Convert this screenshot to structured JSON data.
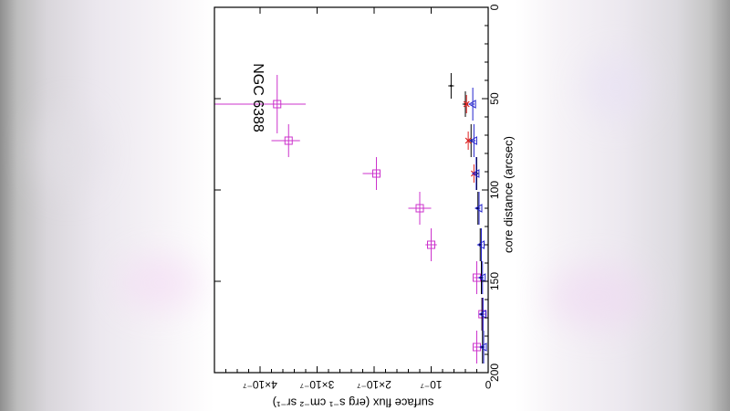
{
  "chart_data": {
    "type": "scatter",
    "title": "NGC 6388",
    "xlabel": "core distance (arcsec)",
    "ylabel": "surface flux (erg s⁻¹ cm⁻² sr⁻¹)",
    "xlim": [
      0,
      200
    ],
    "ylim": [
      0,
      4.8e-07
    ],
    "x_ticks": [
      {
        "value": 0,
        "label": "0"
      },
      {
        "value": 50,
        "label": "50"
      },
      {
        "value": 100,
        "label": "100"
      },
      {
        "value": 150,
        "label": "150"
      },
      {
        "value": 200,
        "label": "200"
      }
    ],
    "y_ticks": [
      {
        "value": 0,
        "label": "0"
      },
      {
        "value": 1e-07,
        "label": "10⁻⁷"
      },
      {
        "value": 2e-07,
        "label": "2×10⁻⁷"
      },
      {
        "value": 3e-07,
        "label": "3×10⁻⁷"
      },
      {
        "value": 4e-07,
        "label": "4×10⁻⁷"
      }
    ],
    "orientation": "rotated 90 degrees",
    "series": [
      {
        "color": "#cc33cc",
        "marker": "square",
        "points": [
          {
            "x": 53,
            "y": 3.7e-07,
            "xerr": 16,
            "ylo": 3.2e-07,
            "yhi": 4.8e-07
          },
          {
            "x": 73,
            "y": 3.5e-07,
            "xerr": 9,
            "ylo": 3.3e-07,
            "yhi": 3.8e-07
          },
          {
            "x": 91,
            "y": 1.96e-07,
            "xerr": 9,
            "ylo": 1.9e-07,
            "yhi": 2.2e-07
          },
          {
            "x": 110,
            "y": 1.2e-07,
            "xerr": 9,
            "ylo": 1e-07,
            "yhi": 1.4e-07
          },
          {
            "x": 130,
            "y": 1e-07,
            "xerr": 9,
            "ylo": 9e-08,
            "yhi": 1.1e-07
          },
          {
            "x": 148,
            "y": 2e-08,
            "xerr": 9,
            "ylo": 1.5e-08,
            "yhi": 2.5e-08
          },
          {
            "x": 168,
            "y": 1e-08,
            "xerr": 9,
            "ylo": 5e-09,
            "yhi": 1.5e-08
          },
          {
            "x": 186,
            "y": 2e-08,
            "xerr": 9,
            "ylo": 1.5e-08,
            "yhi": 2.5e-08
          }
        ]
      },
      {
        "color": "#000000",
        "marker": "plus",
        "points": [
          {
            "x": 43,
            "y": 6.5e-08,
            "xerr": 7,
            "ylo": 6e-08,
            "yhi": 7e-08
          },
          {
            "x": 53,
            "y": 4e-08,
            "xerr": 7,
            "ylo": 3.5e-08,
            "yhi": 4.5e-08
          },
          {
            "x": 73,
            "y": 3e-08,
            "xerr": 9,
            "ylo": 2.7e-08,
            "yhi": 3.3e-08
          },
          {
            "x": 91,
            "y": 2e-08,
            "xerr": 9,
            "ylo": 1.7e-08,
            "yhi": 2.3e-08
          },
          {
            "x": 110,
            "y": 1.8e-08,
            "xerr": 9,
            "ylo": 1.5e-08,
            "yhi": 2.1e-08
          },
          {
            "x": 130,
            "y": 1.4e-08,
            "xerr": 9,
            "ylo": 1.2e-08,
            "yhi": 1.6e-08
          },
          {
            "x": 148,
            "y": 1.2e-08,
            "xerr": 9,
            "ylo": 1e-08,
            "yhi": 1.4e-08
          },
          {
            "x": 168,
            "y": 1.1e-08,
            "xerr": 9,
            "ylo": 9e-09,
            "yhi": 1.3e-08
          },
          {
            "x": 186,
            "y": 1e-08,
            "xerr": 9,
            "ylo": 8e-09,
            "yhi": 1.2e-08
          }
        ]
      },
      {
        "color": "#dd2222",
        "marker": "star",
        "points": [
          {
            "x": 53,
            "y": 3.8e-08,
            "xerr": 5,
            "ylo": 3.6e-08,
            "yhi": 4e-08
          },
          {
            "x": 73,
            "y": 3.5e-08,
            "xerr": 5,
            "ylo": 3.3e-08,
            "yhi": 3.7e-08
          },
          {
            "x": 91,
            "y": 2.5e-08,
            "xerr": 5,
            "ylo": 2.3e-08,
            "yhi": 2.7e-08
          }
        ]
      },
      {
        "color": "#2222cc",
        "marker": "triangle",
        "points": [
          {
            "x": 53,
            "y": 2.7e-08,
            "xerr": 9,
            "ylo": 2.4e-08,
            "yhi": 3e-08
          },
          {
            "x": 73,
            "y": 2.5e-08,
            "xerr": 9,
            "ylo": 2.2e-08,
            "yhi": 2.8e-08
          },
          {
            "x": 91,
            "y": 2.1e-08,
            "xerr": 9,
            "ylo": 1.8e-08,
            "yhi": 2.4e-08
          },
          {
            "x": 110,
            "y": 1.6e-08,
            "xerr": 9,
            "ylo": 1.4e-08,
            "yhi": 1.8e-08
          },
          {
            "x": 130,
            "y": 1.2e-08,
            "xerr": 9,
            "ylo": 1e-08,
            "yhi": 1.4e-08
          },
          {
            "x": 148,
            "y": 1e-08,
            "xerr": 9,
            "ylo": 8e-09,
            "yhi": 1.2e-08
          },
          {
            "x": 168,
            "y": 9e-09,
            "xerr": 9,
            "ylo": 7e-09,
            "yhi": 1.1e-08
          },
          {
            "x": 186,
            "y": 8e-09,
            "xerr": 9,
            "ylo": 6e-09,
            "yhi": 1e-08
          }
        ]
      }
    ]
  }
}
